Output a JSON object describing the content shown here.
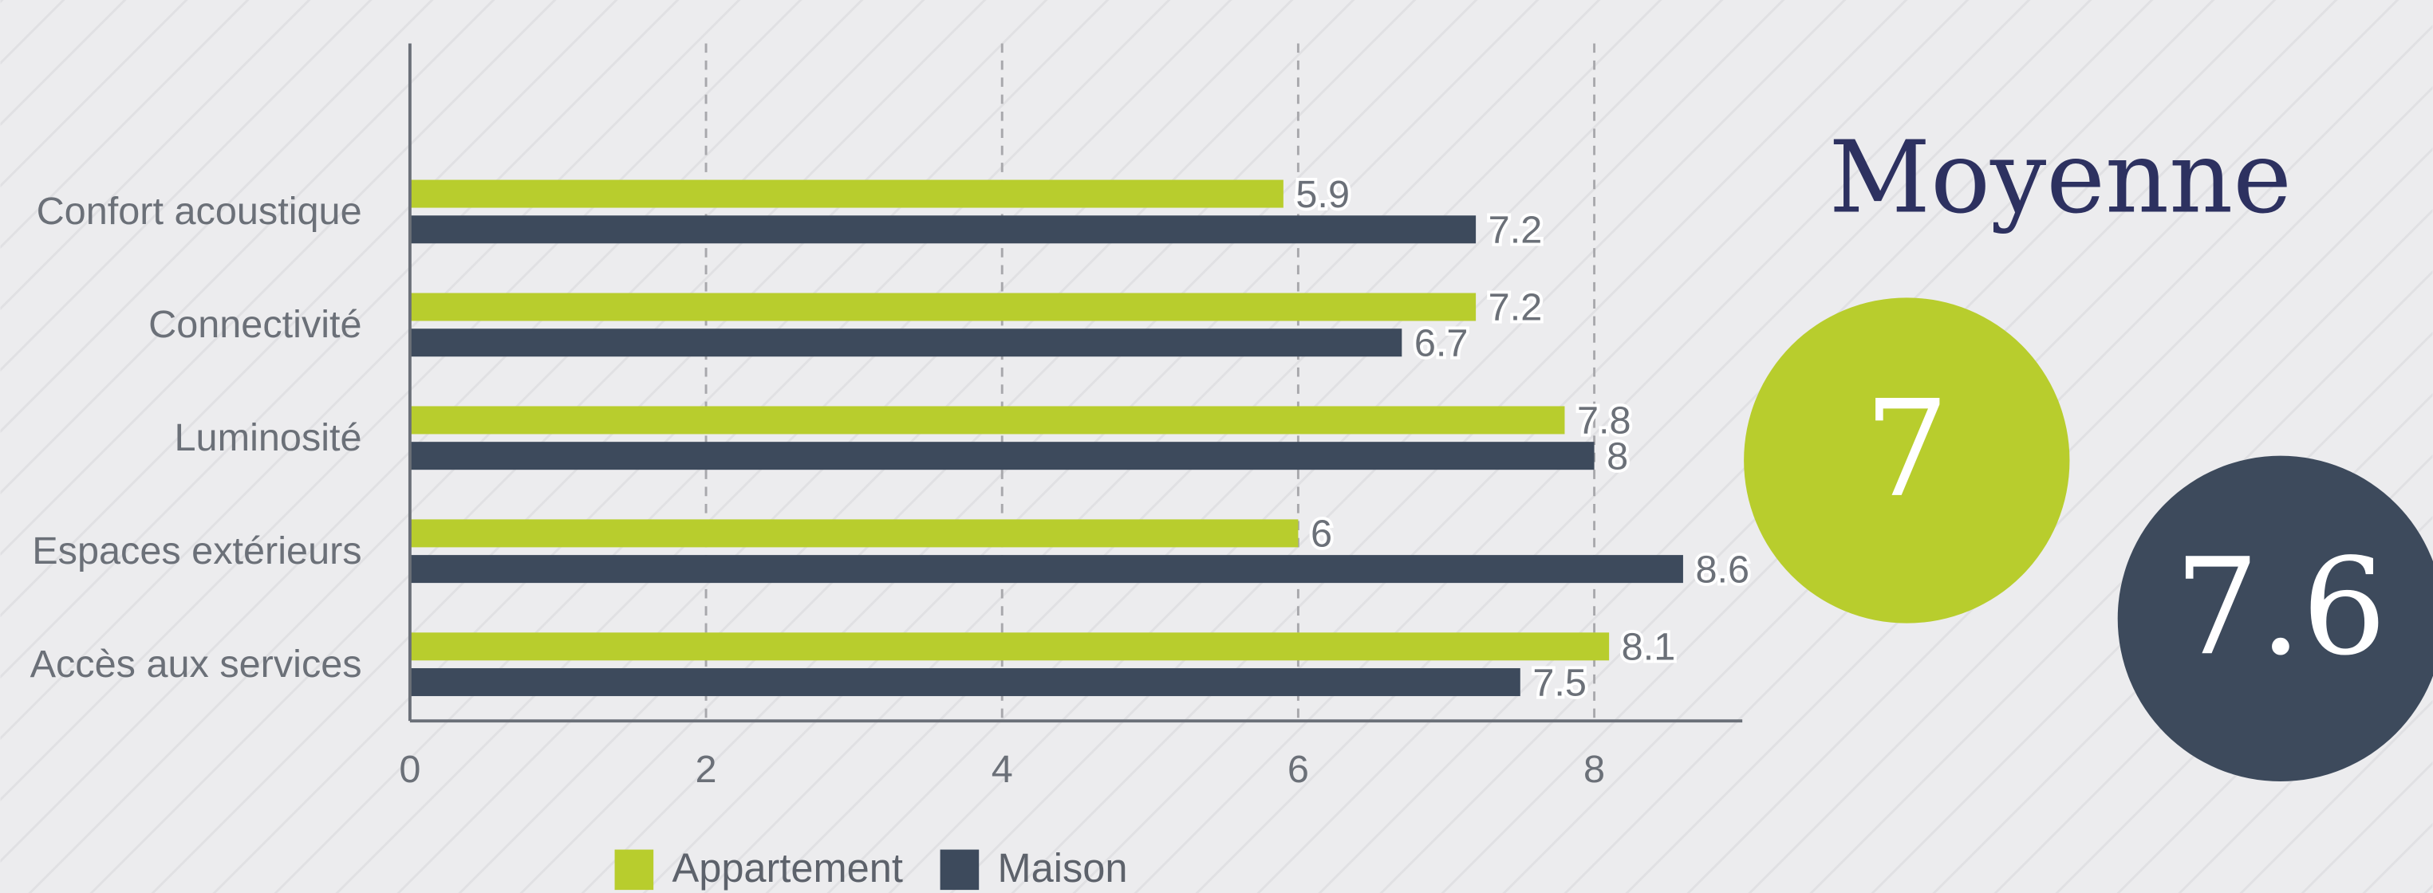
{
  "chart_data": {
    "type": "bar",
    "orientation": "horizontal",
    "categories": [
      "Confort acoustique",
      "Connectivité",
      "Luminosité",
      "Espaces extérieurs",
      "Accès aux services"
    ],
    "series": [
      {
        "name": "Appartement",
        "color": "#b8cd2d",
        "values": [
          5.9,
          7.2,
          7.8,
          6,
          8.1
        ]
      },
      {
        "name": "Maison",
        "color": "#3d4a5c",
        "values": [
          7.2,
          6.7,
          8,
          8.6,
          7.5
        ]
      }
    ],
    "xlim": [
      0,
      9
    ],
    "xticks": [
      0,
      2,
      4,
      6,
      8
    ],
    "grid": true,
    "legend": "bottom",
    "averages": {
      "title": "Moyenne",
      "values": [
        7,
        7.6
      ]
    }
  }
}
